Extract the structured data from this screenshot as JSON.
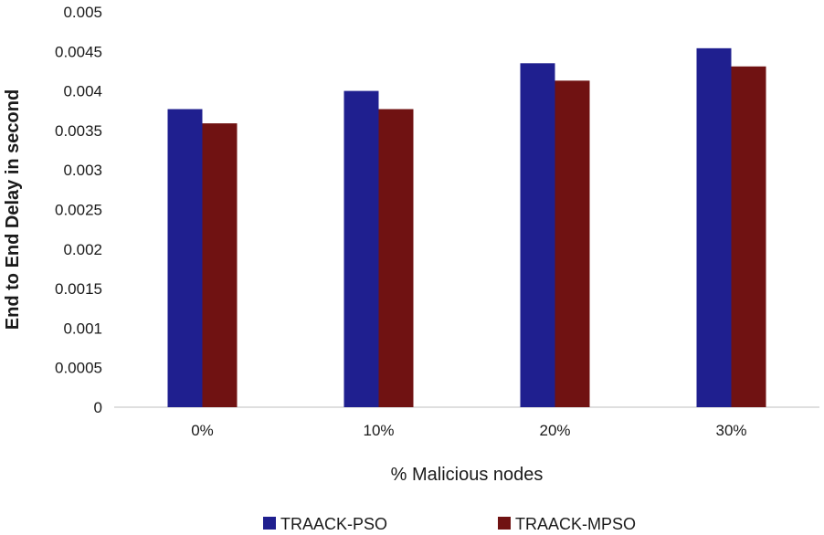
{
  "chart_data": {
    "type": "bar",
    "categories": [
      "0%",
      "10%",
      "20%",
      "30%"
    ],
    "series": [
      {
        "name": "TRAACK-PSO",
        "color": "#1f1f8f",
        "values": [
          0.00377,
          0.004,
          0.00435,
          0.00454
        ]
      },
      {
        "name": "TRAACK-MPSO",
        "color": "#701212",
        "values": [
          0.00359,
          0.00377,
          0.00413,
          0.00431
        ]
      }
    ],
    "title": "",
    "xlabel": "% Malicious nodes",
    "ylabel": "End to End Delay in second",
    "ylim": [
      0,
      0.005
    ],
    "yticks": [
      "0",
      "0.0005",
      "0.001",
      "0.0015",
      "0.002",
      "0.0025",
      "0.003",
      "0.0035",
      "0.004",
      "0.0045",
      "0.005"
    ],
    "grid": false,
    "legend_position": "bottom"
  }
}
